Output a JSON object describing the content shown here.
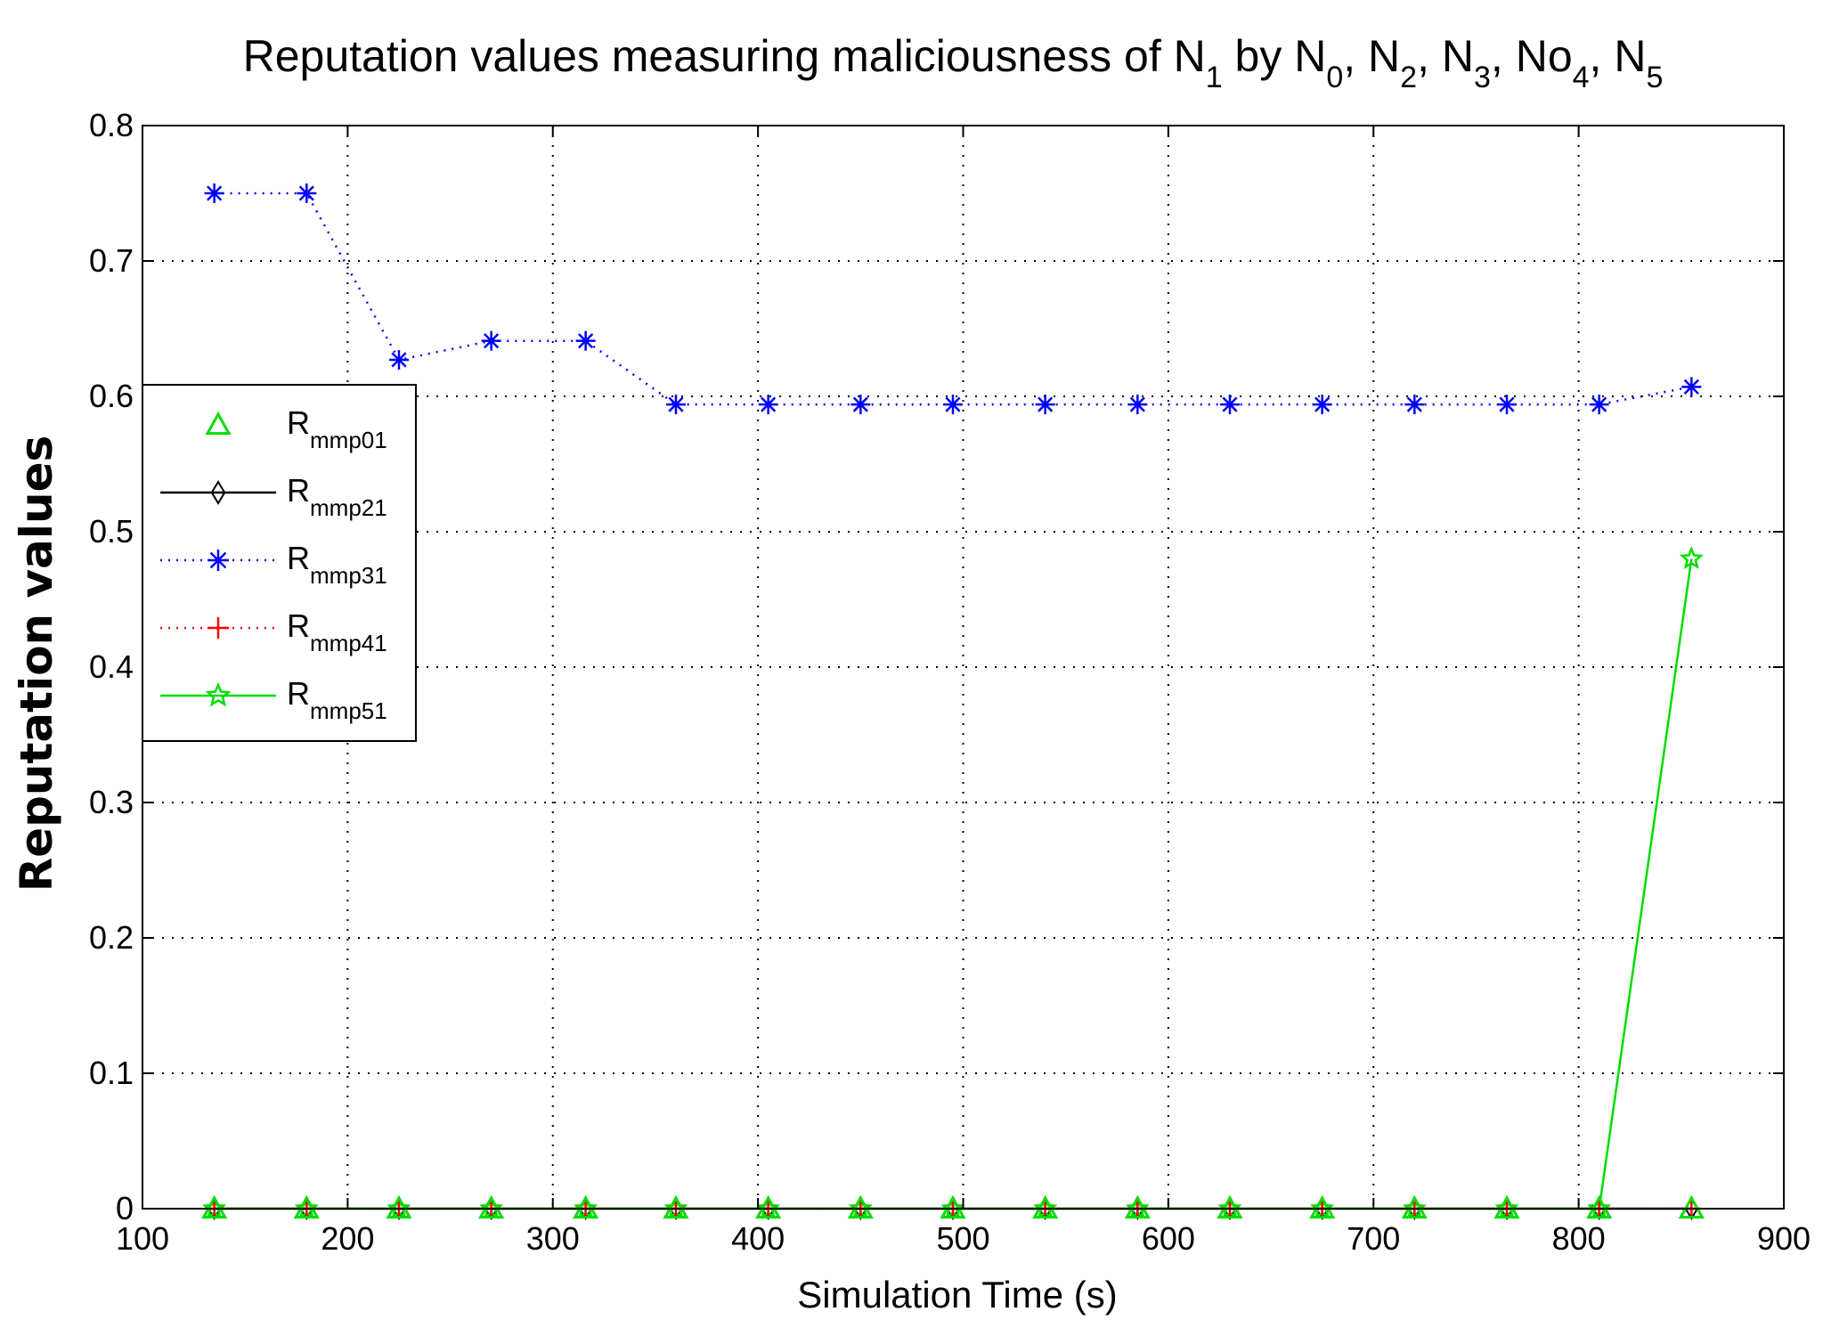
{
  "chart_data": {
    "type": "line",
    "title": {
      "prefix": "Reputation values measuring maliciousness of N",
      "sub1": "1",
      "mid1": " by N",
      "sub2": "0",
      "mid2": ", N",
      "sub3": "2",
      "mid3": ", N",
      "sub4": "3",
      "mid4": ", No",
      "sub5": "4",
      "mid5": ", N",
      "sub6": "5"
    },
    "xlabel": "Simulation Time (s)",
    "ylabel": "Reputation values",
    "xlim": [
      100,
      900
    ],
    "ylim": [
      0,
      0.8
    ],
    "xticks": [
      "100",
      "200",
      "300",
      "400",
      "500",
      "600",
      "700",
      "800",
      "900"
    ],
    "yticks": [
      "0",
      "0.1",
      "0.2",
      "0.3",
      "0.4",
      "0.5",
      "0.6",
      "0.7",
      "0.8"
    ],
    "grid": true,
    "legend_position": "left",
    "x": [
      135,
      180,
      225,
      270,
      316,
      360,
      405,
      450,
      495,
      540,
      585,
      630,
      675,
      720,
      765,
      810,
      855
    ],
    "series": [
      {
        "name": "Rmmp01",
        "label_main": "R",
        "label_sub": "mmp01",
        "color": "#00dd00",
        "marker": "triangle",
        "line": "none",
        "values": [
          0,
          0,
          0,
          0,
          0,
          0,
          0,
          0,
          0,
          0,
          0,
          0,
          0,
          0,
          0,
          0,
          0
        ]
      },
      {
        "name": "Rmmp21",
        "label_main": "R",
        "label_sub": "mmp21",
        "color": "#000000",
        "marker": "diamond",
        "line": "solid",
        "values": [
          0,
          0,
          0,
          0,
          0,
          0,
          0,
          0,
          0,
          0,
          0,
          0,
          0,
          0,
          0,
          0,
          0
        ]
      },
      {
        "name": "Rmmp31",
        "label_main": "R",
        "label_sub": "mmp31",
        "color": "#0000ff",
        "marker": "asterisk",
        "line": "dotted",
        "values": [
          0.75,
          0.75,
          0.627,
          0.641,
          0.641,
          0.594,
          0.594,
          0.594,
          0.594,
          0.594,
          0.594,
          0.594,
          0.594,
          0.594,
          0.594,
          0.594,
          0.607
        ]
      },
      {
        "name": "Rmmp41",
        "label_main": "R",
        "label_sub": "mmp41",
        "color": "#ff0000",
        "marker": "plus",
        "line": "dotted",
        "values": [
          0,
          0,
          0,
          0,
          0,
          0,
          0,
          0,
          0,
          0,
          0,
          0,
          0,
          0,
          0,
          0,
          0
        ]
      },
      {
        "name": "Rmmp51",
        "label_main": "R",
        "label_sub": "mmp51",
        "color": "#00dd00",
        "marker": "star",
        "line": "solid",
        "values": [
          0,
          0,
          0,
          0,
          0,
          0,
          0,
          0,
          0,
          0,
          0,
          0,
          0,
          0,
          0,
          0,
          0.48
        ]
      }
    ]
  }
}
